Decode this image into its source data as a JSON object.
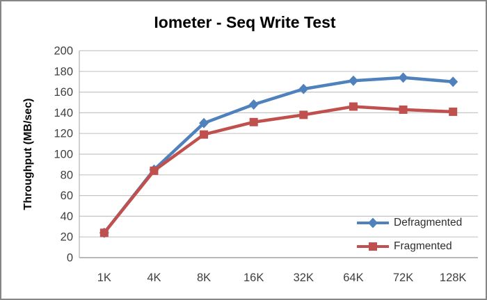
{
  "chart_data": {
    "type": "line",
    "title": "Iometer - Seq Write Test",
    "xlabel": "",
    "ylabel": "Throughput (MB/sec)",
    "categories": [
      "1K",
      "4K",
      "8K",
      "16K",
      "32K",
      "64K",
      "72K",
      "128K"
    ],
    "series": [
      {
        "name": "Defragmented",
        "marker": "diamond",
        "color": "#4f81bd",
        "values": [
          24,
          85,
          130,
          148,
          163,
          171,
          174,
          170
        ]
      },
      {
        "name": "Fragmented",
        "marker": "square",
        "color": "#c0504d",
        "values": [
          24,
          84,
          119,
          131,
          138,
          146,
          143,
          141
        ]
      }
    ],
    "ylim": [
      0,
      200
    ],
    "y_tick_step": 20,
    "grid": true,
    "legend_position": "inside-bottom-right"
  },
  "colors": {
    "gridline": "#c5c5c5",
    "axis_line_left": "#b0b0b0",
    "axis_line_bottom": "#8f8f8f",
    "tick_text": "#3f3f3f",
    "frame_border": "#868686"
  }
}
